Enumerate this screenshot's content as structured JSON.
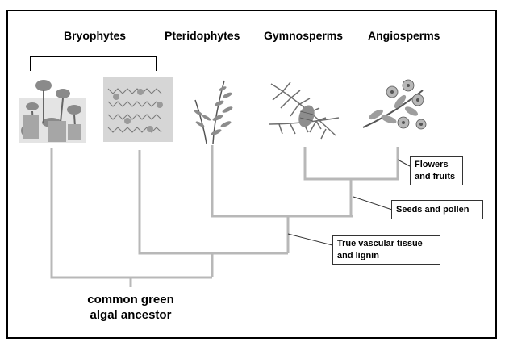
{
  "groups": {
    "bryophytes": "Bryophytes",
    "pteridophytes": "Pteridophytes",
    "gymnosperms": "Gymnosperms",
    "angiosperms": "Angiosperms"
  },
  "callouts": {
    "flowers": [
      "Flowers",
      "and fruits"
    ],
    "seeds": [
      "Seeds and pollen"
    ],
    "vascular": [
      "True vascular tissue",
      "and lignin"
    ]
  },
  "ancestor": [
    "common green",
    "algal ancestor"
  ],
  "colors": {
    "branch": "#b8b8b8",
    "frame": "#000000",
    "callout_border": "#333333"
  }
}
